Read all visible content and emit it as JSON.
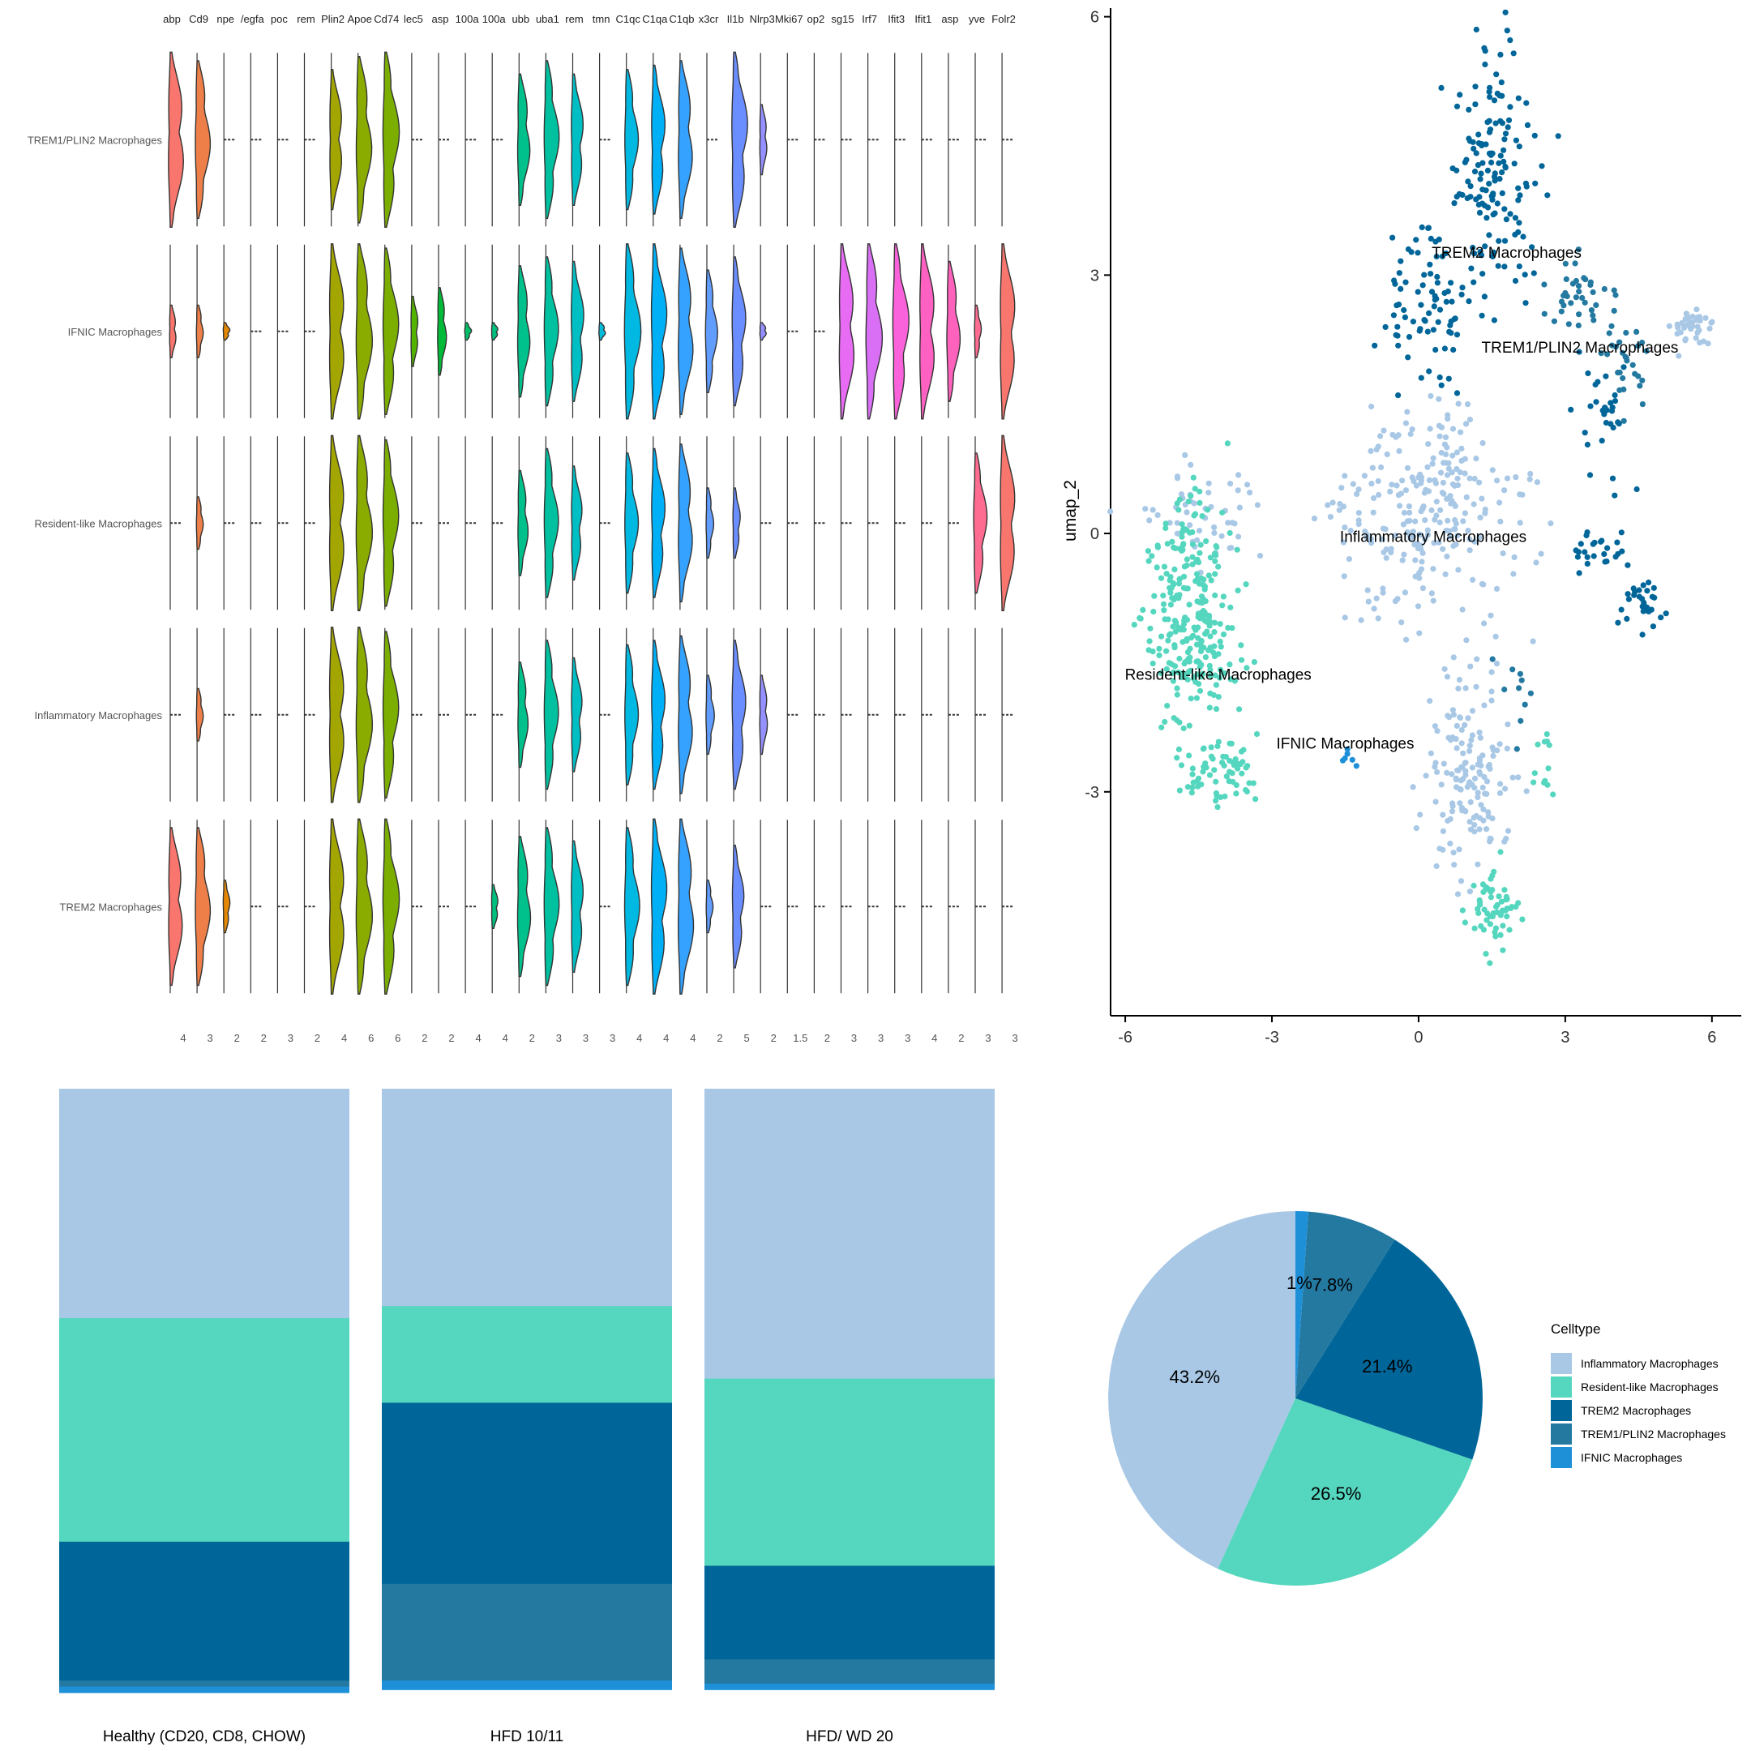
{
  "chart_data": [
    {
      "type": "violin",
      "genes": [
        "abp",
        "Cd9",
        "npe",
        "/egfa",
        "poc",
        "rem",
        "Plin2",
        "Apoe",
        "Cd74",
        "lec5",
        "asp",
        "100a",
        "100a",
        "ubb",
        "uba1",
        "rem",
        "tmn",
        "C1qc",
        "C1qa",
        "C1qb",
        "x3cr",
        "Il1b",
        "Nlrp3",
        "Mki67",
        "op2",
        "sg15",
        "Irf7",
        "Ifit3",
        "Ifit1",
        "asp",
        "yve",
        "Folr2"
      ],
      "gene_max_ticks": [
        "4",
        "3",
        "2",
        "2",
        "3",
        "2",
        "4",
        "6",
        "6",
        "2",
        "2",
        "4",
        "4",
        "2",
        "3",
        "3",
        "3",
        "4",
        "4",
        "4",
        "2",
        "5",
        "2",
        "1.5",
        "2",
        "3",
        "3",
        "3",
        "4",
        "2",
        "3",
        "3"
      ],
      "gene_colors": [
        "#F8766D",
        "#EF7F48",
        "#E58700",
        "#D39200",
        "#C09B00",
        "#A9A400",
        "#A3A500",
        "#8AAB00",
        "#7CAE00",
        "#53B400",
        "#00BA38",
        "#00BE67",
        "#00BF7D",
        "#00C08B",
        "#00C19F",
        "#00BFC4",
        "#00BCD8",
        "#00B9E3",
        "#00B0F6",
        "#35A2FF",
        "#619CFF",
        "#6A8DFF",
        "#9590FF",
        "#B983FF",
        "#C77CFF",
        "#E76BF3",
        "#D96FF5",
        "#FA62DB",
        "#FF61C3",
        "#FF62BC",
        "#FF6C91",
        "#F8766D"
      ],
      "celltypes": [
        "TREM1/PLIN2 Macrophages",
        "IFNIC Macrophages",
        "Resident-like Macrophages",
        "Inflammatory Macrophages",
        "TREM2 Macrophages"
      ],
      "expression_fraction": [
        [
          1.0,
          0.9,
          0.05,
          0.05,
          0.05,
          0.05,
          0.8,
          0.95,
          1.0,
          0.05,
          0.05,
          0.05,
          0.05,
          0.75,
          0.9,
          0.75,
          0.0,
          0.8,
          0.85,
          0.9,
          0.05,
          1.0,
          0.4,
          0.05,
          0.05,
          0.05,
          0.05,
          0.05,
          0.05,
          0.05,
          0.0,
          0.0
        ],
        [
          0.3,
          0.3,
          0.1,
          0.0,
          0.0,
          0.0,
          1.0,
          1.0,
          0.95,
          0.4,
          0.5,
          0.1,
          0.1,
          0.75,
          0.85,
          0.8,
          0.1,
          1.0,
          1.0,
          0.95,
          0.7,
          0.85,
          0.1,
          0.0,
          0.0,
          1.0,
          1.0,
          1.0,
          1.0,
          0.8,
          0.3,
          1.0
        ],
        [
          0.05,
          0.3,
          0.05,
          0.05,
          0.05,
          0.05,
          1.0,
          1.0,
          0.95,
          0.05,
          0.05,
          0.05,
          0.05,
          0.6,
          0.85,
          0.65,
          0.05,
          0.8,
          0.85,
          0.9,
          0.4,
          0.4,
          0.05,
          0.05,
          0.05,
          0.05,
          0.05,
          0.05,
          0.05,
          0.05,
          0.8,
          1.0
        ],
        [
          0.05,
          0.3,
          0.05,
          0.05,
          0.05,
          0.05,
          1.0,
          1.0,
          0.95,
          0.05,
          0.05,
          0.05,
          0.05,
          0.6,
          0.85,
          0.65,
          0.05,
          0.8,
          0.85,
          0.9,
          0.45,
          0.85,
          0.45,
          0.05,
          0.05,
          0.05,
          0.05,
          0.05,
          0.05,
          0.05,
          0.05,
          0.05
        ],
        [
          0.9,
          0.9,
          0.3,
          0.05,
          0.05,
          0.05,
          1.0,
          1.0,
          1.0,
          0.05,
          0.05,
          0.05,
          0.25,
          0.8,
          0.9,
          0.75,
          0.05,
          0.9,
          1.0,
          1.0,
          0.3,
          0.7,
          0.05,
          0.05,
          0.05,
          0.05,
          0.05,
          0.05,
          0.05,
          0.05,
          0.05,
          0.05
        ]
      ]
    },
    {
      "type": "scatter",
      "ylabel": "umap_2",
      "xlim": [
        -6.3,
        6.6
      ],
      "ylim": [
        -5.6,
        6.1
      ],
      "xticks": [
        "-6",
        "-3",
        "0",
        "3",
        "6"
      ],
      "yticks": [
        "-3",
        "0",
        "3",
        "6"
      ],
      "clusters": [
        {
          "name": "TREM2 Macrophages",
          "color": "#006699",
          "label_at": [
            1.8,
            3.2
          ],
          "regions": [
            [
              1.6,
              4.2,
              0.9,
              1.6,
              150
            ],
            [
              0.2,
              2.6,
              0.9,
              1.0,
              80
            ],
            [
              4.6,
              -0.8,
              0.5,
              0.3,
              30
            ],
            [
              3.6,
              -0.2,
              0.6,
              0.3,
              25
            ],
            [
              3.7,
              1.4,
              0.6,
              0.8,
              30
            ]
          ]
        },
        {
          "name": "TREM1/PLIN2 Macrophages",
          "color": "#2479A1",
          "label_at": [
            3.3,
            2.1
          ],
          "regions": [
            [
              3.2,
              2.8,
              0.6,
              0.4,
              35
            ],
            [
              4.2,
              2.0,
              0.6,
              0.6,
              30
            ],
            [
              2.0,
              -1.9,
              0.4,
              0.7,
              10
            ]
          ]
        },
        {
          "name": "Inflammatory Macrophages",
          "color": "#A8C8E6",
          "label_at": [
            0.3,
            -0.1
          ],
          "regions": [
            [
              0.2,
              0.2,
              2.0,
              1.2,
              260
            ],
            [
              1.0,
              -2.8,
              0.9,
              1.3,
              150
            ],
            [
              5.5,
              2.4,
              0.5,
              0.3,
              40
            ],
            [
              -4.5,
              0.3,
              1.3,
              0.6,
              50
            ]
          ]
        },
        {
          "name": "Resident-like Macrophages",
          "color": "#55D6BE",
          "label_at": [
            -4.1,
            -1.7
          ],
          "regions": [
            [
              -4.6,
              -1.0,
              1.0,
              1.5,
              280
            ],
            [
              -4.0,
              -2.8,
              0.8,
              0.5,
              60
            ],
            [
              1.5,
              -4.3,
              0.5,
              0.5,
              60
            ],
            [
              2.6,
              -2.6,
              0.3,
              0.4,
              12
            ]
          ]
        },
        {
          "name": "IFNIC Macrophages",
          "color": "#1E90D8",
          "label_at": [
            -1.5,
            -2.5
          ],
          "regions": [
            [
              -1.4,
              -2.6,
              0.2,
              0.1,
              6
            ]
          ]
        }
      ]
    },
    {
      "type": "stacked-bar",
      "categories": [
        "Healthy (CD20, CD8, CHOW)",
        "HFD 10/11",
        "HFD/ WD 20"
      ],
      "ylim": [
        0,
        1
      ],
      "series": [
        {
          "name": "Inflammatory Macrophages",
          "color": "#A8C8E6",
          "values": [
            0.38,
            0.36,
            0.48
          ]
        },
        {
          "name": "Resident-like Macrophages",
          "color": "#55D6BE",
          "values": [
            0.37,
            0.16,
            0.31
          ]
        },
        {
          "name": "TREM2 Macrophages",
          "color": "#006699",
          "values": [
            0.23,
            0.3,
            0.155
          ]
        },
        {
          "name": "TREM1/PLIN2 Macrophages",
          "color": "#2479A1",
          "values": [
            0.01,
            0.16,
            0.04
          ]
        },
        {
          "name": "IFNIC Macrophages",
          "color": "#1E90D8",
          "values": [
            0.01,
            0.015,
            0.01
          ]
        }
      ]
    },
    {
      "type": "pie",
      "legend_title": "Celltype",
      "legend_position": "right",
      "slices": [
        {
          "name": "Inflammatory Macrophages",
          "value": 43.2,
          "label": "43.2%",
          "color": "#A8C8E6"
        },
        {
          "name": "Resident-like Macrophages",
          "value": 26.5,
          "label": "26.5%",
          "color": "#55D6BE"
        },
        {
          "name": "TREM2 Macrophages",
          "value": 21.4,
          "label": "21.4%",
          "color": "#006699"
        },
        {
          "name": "TREM1/PLIN2 Macrophages",
          "value": 7.8,
          "label": "7.8%",
          "color": "#2479A1"
        },
        {
          "name": "IFNIC Macrophages",
          "value": 1.1,
          "label": "1%",
          "color": "#1E90D8"
        }
      ]
    }
  ]
}
